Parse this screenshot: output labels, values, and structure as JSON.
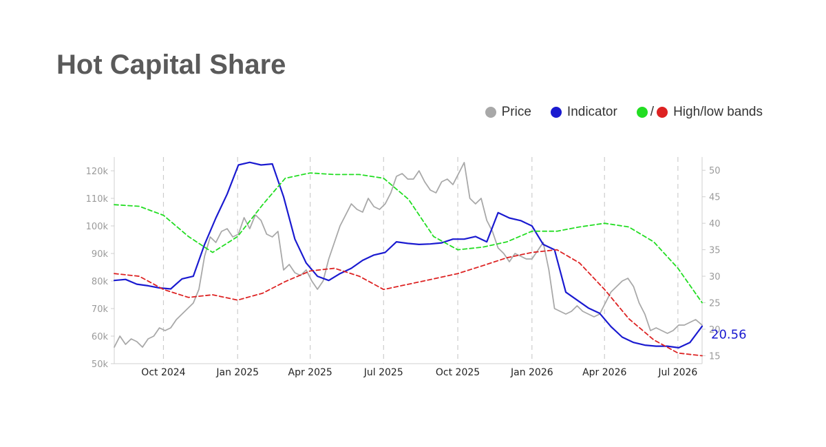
{
  "title": "Hot Capital Share",
  "legend": {
    "price_label": "Price",
    "indicator_label": "Indicator",
    "bands_label": "High/low bands",
    "bands_separator": "/"
  },
  "colors": {
    "price": "#a8a8a8",
    "indicator": "#1a1ad0",
    "high_band": "#22dd22",
    "low_band": "#dd2222"
  },
  "chart_data": {
    "type": "line",
    "x_ticks": [
      "Oct 2024",
      "Jan 2025",
      "Apr 2025",
      "Jul 2025",
      "Oct 2025",
      "Jan 2026",
      "Apr 2026",
      "Jul 2026"
    ],
    "x_tick_dates": [
      "2024-10-01",
      "2025-01-01",
      "2025-04-01",
      "2025-07-01",
      "2025-10-01",
      "2026-01-01",
      "2026-04-01",
      "2026-07-01"
    ],
    "x_range": [
      "2024-08-01",
      "2026-07-31"
    ],
    "y_left": {
      "range": [
        50000,
        125000
      ],
      "ticks": [
        50000,
        60000,
        70000,
        80000,
        90000,
        100000,
        110000,
        120000
      ],
      "tick_labels": [
        "50k",
        "60k",
        "70k",
        "80k",
        "90k",
        "100k",
        "110k",
        "120k"
      ]
    },
    "y_right": {
      "range": [
        13.5,
        52.5
      ],
      "ticks": [
        15,
        20,
        25,
        30,
        35,
        40,
        45,
        50
      ],
      "tick_labels": [
        "15",
        "20",
        "25",
        "30",
        "35",
        "40",
        "45",
        "50"
      ]
    },
    "last_value_label": "20.56",
    "vertical_grid": "dashed",
    "horizontal_grid": false,
    "legend_position": "top-right",
    "series": [
      {
        "name": "Price",
        "axis": "left",
        "x": [
          "2024-08-01",
          "2024-08-08",
          "2024-08-15",
          "2024-08-22",
          "2024-08-29",
          "2024-09-05",
          "2024-09-12",
          "2024-09-19",
          "2024-09-26",
          "2024-10-03",
          "2024-10-10",
          "2024-10-17",
          "2024-10-24",
          "2024-10-31",
          "2024-11-07",
          "2024-11-14",
          "2024-11-21",
          "2024-11-28",
          "2024-12-05",
          "2024-12-12",
          "2024-12-19",
          "2024-12-26",
          "2025-01-02",
          "2025-01-09",
          "2025-01-16",
          "2025-01-23",
          "2025-01-30",
          "2025-02-06",
          "2025-02-13",
          "2025-02-20",
          "2025-02-27",
          "2025-03-06",
          "2025-03-13",
          "2025-03-20",
          "2025-03-27",
          "2025-04-03",
          "2025-04-10",
          "2025-04-17",
          "2025-04-24",
          "2025-05-01",
          "2025-05-08",
          "2025-05-15",
          "2025-05-22",
          "2025-05-29",
          "2025-06-05",
          "2025-06-12",
          "2025-06-19",
          "2025-06-26",
          "2025-07-03",
          "2025-07-10",
          "2025-07-17",
          "2025-07-24",
          "2025-07-31",
          "2025-08-07",
          "2025-08-14",
          "2025-08-21",
          "2025-08-28",
          "2025-09-04",
          "2025-09-11",
          "2025-09-18",
          "2025-09-25",
          "2025-10-02",
          "2025-10-09",
          "2025-10-16",
          "2025-10-23",
          "2025-10-30",
          "2025-11-06",
          "2025-11-13",
          "2025-11-20",
          "2025-11-27",
          "2025-12-04",
          "2025-12-11",
          "2025-12-18",
          "2025-12-25",
          "2026-01-01",
          "2026-01-08",
          "2026-01-15",
          "2026-01-22",
          "2026-01-29",
          "2026-02-05",
          "2026-02-12",
          "2026-02-19",
          "2026-02-26",
          "2026-03-05",
          "2026-03-12",
          "2026-03-19",
          "2026-03-26",
          "2026-04-02",
          "2026-04-09",
          "2026-04-16",
          "2026-04-23",
          "2026-04-30",
          "2026-05-07",
          "2026-05-14",
          "2026-05-21",
          "2026-05-28",
          "2026-06-04",
          "2026-06-11",
          "2026-06-18",
          "2026-06-25",
          "2026-07-02",
          "2026-07-09",
          "2026-07-16",
          "2026-07-23",
          "2026-07-31"
        ],
        "values": [
          56000,
          60000,
          57000,
          59000,
          58000,
          56000,
          59000,
          60000,
          63000,
          62000,
          63000,
          66000,
          68000,
          70000,
          72000,
          77000,
          89000,
          96000,
          94000,
          98000,
          99000,
          96000,
          97000,
          103000,
          99000,
          104000,
          102000,
          97000,
          96000,
          98000,
          84000,
          86000,
          83000,
          82000,
          84000,
          80000,
          77000,
          80000,
          88000,
          94000,
          100000,
          104000,
          108000,
          106000,
          105000,
          110000,
          107000,
          106000,
          108000,
          112000,
          118000,
          119000,
          117000,
          117000,
          120000,
          116000,
          113000,
          112000,
          116000,
          117000,
          115000,
          119000,
          123000,
          110000,
          108000,
          110000,
          102000,
          98000,
          92000,
          90000,
          87000,
          90000,
          89000,
          88000,
          88000,
          91000,
          94000,
          84000,
          70000,
          69000,
          68000,
          69000,
          71000,
          69000,
          68000,
          67000,
          68000,
          72000,
          76000,
          78000,
          80000,
          81000,
          78000,
          72000,
          68000,
          62000,
          63000,
          62000,
          61000,
          62000,
          64000,
          64000,
          65000,
          66000,
          64000
        ]
      },
      {
        "name": "Indicator",
        "axis": "right",
        "x": [
          "2024-08-01",
          "2024-08-15",
          "2024-08-29",
          "2024-09-12",
          "2024-09-26",
          "2024-10-10",
          "2024-10-24",
          "2024-11-07",
          "2024-11-21",
          "2024-12-05",
          "2024-12-19",
          "2025-01-02",
          "2025-01-16",
          "2025-01-30",
          "2025-02-13",
          "2025-02-27",
          "2025-03-13",
          "2025-03-27",
          "2025-04-10",
          "2025-04-24",
          "2025-05-08",
          "2025-05-22",
          "2025-06-05",
          "2025-06-19",
          "2025-07-03",
          "2025-07-17",
          "2025-07-31",
          "2025-08-14",
          "2025-08-28",
          "2025-09-11",
          "2025-09-25",
          "2025-10-09",
          "2025-10-23",
          "2025-11-06",
          "2025-11-20",
          "2025-12-04",
          "2025-12-18",
          "2026-01-01",
          "2026-01-15",
          "2026-01-29",
          "2026-02-12",
          "2026-02-26",
          "2026-03-12",
          "2026-03-26",
          "2026-04-09",
          "2026-04-23",
          "2026-05-07",
          "2026-05-21",
          "2026-06-04",
          "2026-06-18",
          "2026-07-02",
          "2026-07-16",
          "2026-07-31"
        ],
        "values": [
          29.2,
          29.4,
          28.5,
          28.2,
          27.8,
          27.6,
          29.5,
          30.0,
          36.0,
          41.0,
          45.5,
          51.0,
          51.5,
          51.0,
          51.2,
          45.0,
          37.0,
          32.5,
          30.0,
          29.2,
          30.5,
          31.5,
          33.0,
          34.0,
          34.5,
          36.5,
          36.2,
          36.0,
          36.1,
          36.3,
          37.0,
          37.0,
          37.5,
          36.5,
          42.0,
          41.0,
          40.5,
          39.5,
          36.0,
          35.0,
          27.0,
          25.5,
          24.0,
          23.0,
          20.5,
          18.5,
          17.5,
          17.0,
          16.8,
          16.8,
          16.5,
          17.5,
          20.56
        ]
      },
      {
        "name": "High band",
        "axis": "right",
        "x": [
          "2024-08-01",
          "2024-09-01",
          "2024-10-01",
          "2024-11-01",
          "2024-12-01",
          "2025-01-01",
          "2025-02-01",
          "2025-03-01",
          "2025-04-01",
          "2025-05-01",
          "2025-06-01",
          "2025-07-01",
          "2025-08-01",
          "2025-09-01",
          "2025-10-01",
          "2025-11-01",
          "2025-12-01",
          "2026-01-01",
          "2026-02-01",
          "2026-03-01",
          "2026-04-01",
          "2026-05-01",
          "2026-06-01",
          "2026-07-01",
          "2026-07-31"
        ],
        "values": [
          43.5,
          43.2,
          41.5,
          37.5,
          34.5,
          37.5,
          43.5,
          48.5,
          49.5,
          49.2,
          49.2,
          48.5,
          44.5,
          37.5,
          35.0,
          35.5,
          36.5,
          38.5,
          38.5,
          39.3,
          40.0,
          39.3,
          36.5,
          31.5,
          25.0
        ]
      },
      {
        "name": "Low band",
        "axis": "right",
        "x": [
          "2024-08-01",
          "2024-09-01",
          "2024-10-01",
          "2024-11-01",
          "2024-12-01",
          "2025-01-01",
          "2025-02-01",
          "2025-03-01",
          "2025-04-01",
          "2025-05-01",
          "2025-06-01",
          "2025-07-01",
          "2025-08-01",
          "2025-09-01",
          "2025-10-01",
          "2025-11-01",
          "2025-12-01",
          "2026-01-01",
          "2026-02-01",
          "2026-03-01",
          "2026-04-01",
          "2026-05-01",
          "2026-06-01",
          "2026-07-01",
          "2026-07-31"
        ],
        "values": [
          30.5,
          30.0,
          27.5,
          26.0,
          26.5,
          25.5,
          26.8,
          29.0,
          31.0,
          31.5,
          30.0,
          27.5,
          28.5,
          29.5,
          30.5,
          32.0,
          33.5,
          34.5,
          35.0,
          32.5,
          27.5,
          22.0,
          18.0,
          15.5,
          15.0
        ]
      }
    ]
  }
}
